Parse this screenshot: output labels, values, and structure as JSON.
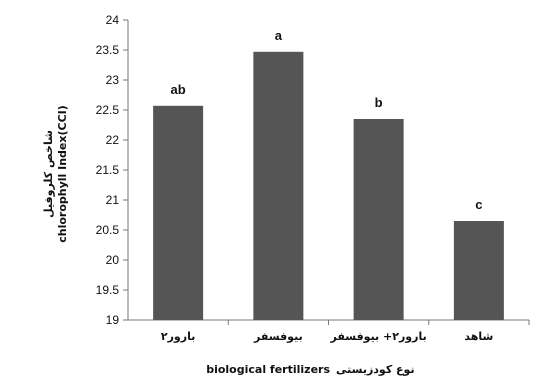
{
  "chart_data": {
    "type": "bar",
    "categories": [
      "بارور۲",
      "بیوفسفر",
      "بارور۲+ بیوفسفر",
      "شاهد"
    ],
    "values": [
      22.57,
      23.47,
      22.35,
      20.65
    ],
    "data_labels": [
      "ab",
      "a",
      "b",
      "c"
    ],
    "ylim": [
      19,
      24
    ],
    "yticks": [
      "19",
      "19.5",
      "20",
      "20.5",
      "21",
      "21.5",
      "22",
      "22.5",
      "23",
      "23.5",
      "24"
    ],
    "ylabel_fa": "شاخص کلروفیل",
    "ylabel_en": "chlorophyll Index(CCI)",
    "xlabel_fa": "نوع کودزیستی",
    "xlabel_en": "biological fertilizers",
    "bar_color": "#555555",
    "grid": false,
    "legend": "none"
  }
}
